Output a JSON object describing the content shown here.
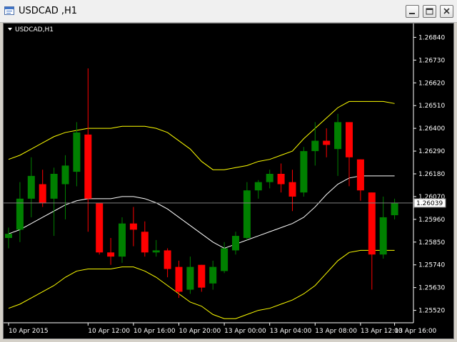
{
  "window": {
    "title": "USDCAD ,H1",
    "buttons": {
      "minimize": "minimize",
      "maximize": "maximize",
      "close": "close"
    }
  },
  "chart_data": {
    "type": "candlestick",
    "label": "USDCAD,H1",
    "current_price": "1.26039",
    "y_ticks": [
      "1.26840",
      "1.26730",
      "1.26620",
      "1.26510",
      "1.26400",
      "1.26290",
      "1.26180",
      "1.26070",
      "1.25960",
      "1.25850",
      "1.25740",
      "1.25630",
      "1.25520"
    ],
    "x_ticks": [
      "10 Apr 2015",
      "10 Apr 12:00",
      "10 Apr 16:00",
      "10 Apr 20:00",
      "13 Apr 00:00",
      "13 Apr 04:00",
      "13 Apr 08:00",
      "13 Apr 12:00",
      "13 Apr 16:00"
    ],
    "ylim": [
      1.2546,
      1.269
    ],
    "colors": {
      "background": "#000000",
      "bull": "#008000",
      "bear": "#ff0000",
      "bands": "#ffff00",
      "ma": "#ffffff",
      "axis": "#ffffff",
      "price_line": "#808080"
    },
    "candles": [
      {
        "o": 1.2587,
        "h": 1.2592,
        "l": 1.2582,
        "c": 1.2589
      },
      {
        "o": 1.2591,
        "h": 1.2614,
        "l": 1.2585,
        "c": 1.2606
      },
      {
        "o": 1.2606,
        "h": 1.2626,
        "l": 1.2597,
        "c": 1.2617
      },
      {
        "o": 1.2613,
        "h": 1.262,
        "l": 1.2602,
        "c": 1.2604
      },
      {
        "o": 1.2606,
        "h": 1.2621,
        "l": 1.2588,
        "c": 1.2618
      },
      {
        "o": 1.2613,
        "h": 1.2627,
        "l": 1.2596,
        "c": 1.2622
      },
      {
        "o": 1.2619,
        "h": 1.2643,
        "l": 1.2612,
        "c": 1.2638
      },
      {
        "o": 1.2637,
        "h": 1.2669,
        "l": 1.259,
        "c": 1.2606
      },
      {
        "o": 1.2604,
        "h": 1.2604,
        "l": 1.2579,
        "c": 1.258
      },
      {
        "o": 1.258,
        "h": 1.2587,
        "l": 1.2574,
        "c": 1.2578
      },
      {
        "o": 1.2578,
        "h": 1.2597,
        "l": 1.2575,
        "c": 1.2594
      },
      {
        "o": 1.2594,
        "h": 1.2602,
        "l": 1.2583,
        "c": 1.2591
      },
      {
        "o": 1.259,
        "h": 1.2595,
        "l": 1.2578,
        "c": 1.258
      },
      {
        "o": 1.258,
        "h": 1.2586,
        "l": 1.2578,
        "c": 1.2581
      },
      {
        "o": 1.2581,
        "h": 1.2582,
        "l": 1.2568,
        "c": 1.2572
      },
      {
        "o": 1.2573,
        "h": 1.2576,
        "l": 1.2558,
        "c": 1.2561
      },
      {
        "o": 1.2562,
        "h": 1.2578,
        "l": 1.256,
        "c": 1.2573
      },
      {
        "o": 1.2574,
        "h": 1.2574,
        "l": 1.2561,
        "c": 1.2563
      },
      {
        "o": 1.2565,
        "h": 1.2576,
        "l": 1.2562,
        "c": 1.2573
      },
      {
        "o": 1.2571,
        "h": 1.2585,
        "l": 1.257,
        "c": 1.2582
      },
      {
        "o": 1.2581,
        "h": 1.259,
        "l": 1.2579,
        "c": 1.2588
      },
      {
        "o": 1.2587,
        "h": 1.2614,
        "l": 1.2586,
        "c": 1.261
      },
      {
        "o": 1.261,
        "h": 1.2615,
        "l": 1.2606,
        "c": 1.2614
      },
      {
        "o": 1.2614,
        "h": 1.262,
        "l": 1.2611,
        "c": 1.2618
      },
      {
        "o": 1.2618,
        "h": 1.2623,
        "l": 1.2609,
        "c": 1.2613
      },
      {
        "o": 1.2614,
        "h": 1.262,
        "l": 1.26,
        "c": 1.2607
      },
      {
        "o": 1.2609,
        "h": 1.2631,
        "l": 1.2607,
        "c": 1.2629
      },
      {
        "o": 1.2629,
        "h": 1.2643,
        "l": 1.2622,
        "c": 1.2634
      },
      {
        "o": 1.2634,
        "h": 1.264,
        "l": 1.2626,
        "c": 1.2632
      },
      {
        "o": 1.263,
        "h": 1.2647,
        "l": 1.2617,
        "c": 1.2643
      },
      {
        "o": 1.2643,
        "h": 1.2642,
        "l": 1.2612,
        "c": 1.2626
      },
      {
        "o": 1.2625,
        "h": 1.2625,
        "l": 1.2605,
        "c": 1.261
      },
      {
        "o": 1.2609,
        "h": 1.2609,
        "l": 1.2562,
        "c": 1.2579
      },
      {
        "o": 1.2579,
        "h": 1.2607,
        "l": 1.2577,
        "c": 1.2597
      },
      {
        "o": 1.2598,
        "h": 1.2606,
        "l": 1.2596,
        "c": 1.2604
      }
    ],
    "upper_band": [
      1.2625,
      1.2627,
      1.263,
      1.2633,
      1.2636,
      1.2638,
      1.2639,
      1.264,
      1.264,
      1.264,
      1.2641,
      1.2641,
      1.2641,
      1.264,
      1.2638,
      1.2634,
      1.263,
      1.2624,
      1.262,
      1.262,
      1.2621,
      1.2622,
      1.2624,
      1.2625,
      1.2627,
      1.2629,
      1.2635,
      1.264,
      1.2645,
      1.265,
      1.2653,
      1.2653,
      1.2653,
      1.2653,
      1.2652
    ],
    "middle_band": [
      1.2589,
      1.2591,
      1.2594,
      1.2597,
      1.26,
      1.2603,
      1.2605,
      1.2606,
      1.2606,
      1.2606,
      1.2607,
      1.2607,
      1.2606,
      1.2604,
      1.2601,
      1.2597,
      1.2593,
      1.2589,
      1.2585,
      1.2582,
      1.2584,
      1.2586,
      1.2588,
      1.259,
      1.2592,
      1.2594,
      1.2597,
      1.2602,
      1.2608,
      1.2613,
      1.2616,
      1.2617,
      1.2617,
      1.2617,
      1.2617
    ],
    "lower_band": [
      1.2553,
      1.2555,
      1.2558,
      1.2561,
      1.2564,
      1.2568,
      1.2571,
      1.2572,
      1.2572,
      1.2572,
      1.2573,
      1.2573,
      1.2571,
      1.2568,
      1.2564,
      1.256,
      1.2556,
      1.2554,
      1.255,
      1.2548,
      1.2548,
      1.255,
      1.2552,
      1.2553,
      1.2555,
      1.2557,
      1.256,
      1.2564,
      1.257,
      1.2576,
      1.258,
      1.2581,
      1.2581,
      1.2581,
      1.2581
    ]
  }
}
